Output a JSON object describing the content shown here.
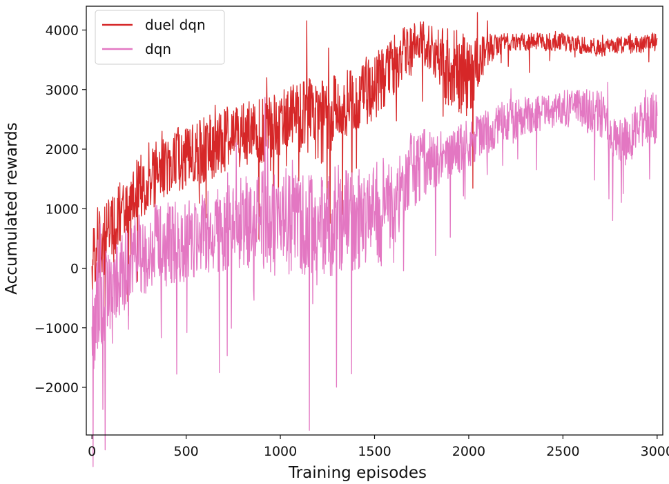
{
  "chart_data": {
    "type": "line",
    "title": "",
    "xlabel": "Training episodes",
    "ylabel": "Accumulated rewards",
    "xlim": [
      -30,
      3030
    ],
    "ylim": [
      -2800,
      4400
    ],
    "x_ticks": [
      0,
      500,
      1000,
      1500,
      2000,
      2500,
      3000
    ],
    "x_tick_labels": [
      "0",
      "500",
      "1000",
      "1500",
      "2000",
      "2500",
      "3000"
    ],
    "y_ticks": [
      -2000,
      -1000,
      0,
      1000,
      2000,
      3000,
      4000
    ],
    "y_tick_labels": [
      "−2000",
      "−1000",
      "0",
      "1000",
      "2000",
      "3000",
      "4000"
    ],
    "grid": false,
    "legend_position": "top-left",
    "series": [
      {
        "name": "duel dqn",
        "color": "#d62728",
        "x": [
          0,
          25,
          50,
          75,
          100,
          150,
          200,
          250,
          300,
          350,
          400,
          450,
          500,
          550,
          600,
          650,
          700,
          750,
          800,
          850,
          900,
          950,
          1000,
          1050,
          1100,
          1150,
          1200,
          1250,
          1300,
          1350,
          1400,
          1450,
          1500,
          1550,
          1600,
          1650,
          1700,
          1750,
          1800,
          1850,
          1900,
          1950,
          2000,
          2050,
          2100,
          2150,
          2200,
          2250,
          2300,
          2400,
          2500,
          2600,
          2700,
          2800,
          2900,
          3000
        ],
        "mean": [
          100,
          450,
          300,
          550,
          650,
          900,
          1100,
          1350,
          1500,
          1600,
          1700,
          1800,
          1900,
          1950,
          2000,
          2050,
          2150,
          2200,
          2250,
          2300,
          2300,
          2400,
          2450,
          2500,
          2550,
          2550,
          2400,
          2550,
          2650,
          2750,
          2850,
          2950,
          3050,
          3200,
          3400,
          3600,
          3700,
          3750,
          3700,
          3500,
          3400,
          3300,
          3200,
          3500,
          3650,
          3750,
          3800,
          3800,
          3800,
          3800,
          3800,
          3750,
          3700,
          3750,
          3750,
          3800
        ],
        "noise": [
          550,
          600,
          650,
          550,
          550,
          550,
          550,
          550,
          550,
          550,
          500,
          550,
          550,
          550,
          550,
          550,
          550,
          550,
          550,
          550,
          550,
          550,
          550,
          550,
          600,
          700,
          750,
          650,
          600,
          550,
          550,
          550,
          550,
          550,
          500,
          450,
          450,
          400,
          400,
          600,
          700,
          700,
          700,
          500,
          300,
          200,
          150,
          150,
          150,
          150,
          150,
          150,
          150,
          150,
          150,
          150
        ]
      },
      {
        "name": "dqn",
        "color": "#e377c2",
        "x": [
          0,
          25,
          50,
          75,
          100,
          150,
          200,
          250,
          300,
          350,
          400,
          450,
          500,
          550,
          600,
          650,
          700,
          750,
          800,
          850,
          900,
          950,
          1000,
          1050,
          1100,
          1150,
          1200,
          1250,
          1300,
          1350,
          1400,
          1450,
          1500,
          1550,
          1600,
          1650,
          1700,
          1750,
          1800,
          1850,
          1900,
          1950,
          2000,
          2050,
          2100,
          2150,
          2200,
          2250,
          2300,
          2400,
          2500,
          2600,
          2700,
          2750,
          2800,
          2850,
          2900,
          2950,
          3000
        ],
        "mean": [
          -1000,
          -700,
          -600,
          -400,
          -300,
          -100,
          100,
          200,
          300,
          400,
          400,
          450,
          450,
          500,
          600,
          650,
          650,
          700,
          750,
          800,
          800,
          700,
          750,
          800,
          750,
          700,
          600,
          700,
          850,
          800,
          750,
          850,
          900,
          950,
          1100,
          1400,
          1600,
          1750,
          1800,
          1850,
          1900,
          2000,
          2100,
          2200,
          2300,
          2400,
          2500,
          2500,
          2550,
          2600,
          2700,
          2650,
          2600,
          2200,
          2100,
          2150,
          2400,
          2500,
          2500
        ],
        "noise": [
          800,
          900,
          900,
          750,
          700,
          700,
          700,
          700,
          700,
          700,
          700,
          700,
          700,
          700,
          700,
          700,
          750,
          750,
          800,
          800,
          900,
          900,
          900,
          900,
          900,
          900,
          900,
          900,
          900,
          900,
          900,
          900,
          900,
          900,
          800,
          700,
          700,
          600,
          500,
          450,
          400,
          400,
          400,
          400,
          400,
          350,
          350,
          350,
          350,
          300,
          300,
          350,
          400,
          450,
          400,
          400,
          400,
          450,
          450
        ]
      }
    ]
  }
}
